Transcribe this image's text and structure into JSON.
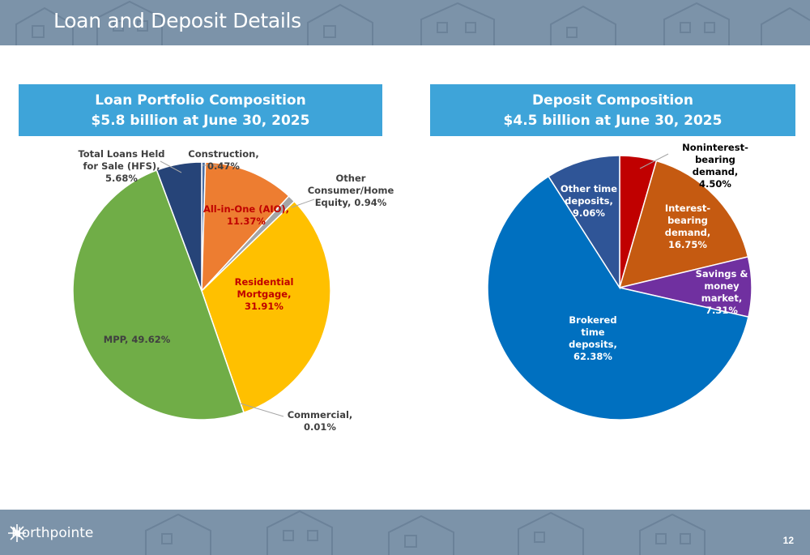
{
  "header": {
    "title": "Loan and Deposit Details"
  },
  "footer": {
    "brand": "Northpointe",
    "page_number": "12",
    "logo_icon": "compass-snowflake-icon"
  },
  "colors": {
    "banner": "#7c93a9",
    "panel_header": "#3ea4d9"
  },
  "loan_panel": {
    "title_line1": "Loan Portfolio Composition",
    "title_line2": "$5.8 billion at June 30, 2025"
  },
  "deposit_panel": {
    "title_line1": "Deposit Composition",
    "title_line2": "$4.5 billion at June 30, 2025"
  },
  "chart_data": [
    {
      "type": "pie",
      "slices": [
        {
          "label": "Construction,\n0.47%",
          "value": 0.47,
          "color": "#4a6fa5"
        },
        {
          "label": "All-in-One (AIO),\n11.37%",
          "value": 11.37,
          "color": "#ed7d31"
        },
        {
          "label": "Other\nConsumer/Home\nEquity, 0.94%",
          "value": 0.94,
          "color": "#a5a5a5"
        },
        {
          "label": "Residential\nMortgage,\n31.91%",
          "value": 31.91,
          "color": "#ffc000"
        },
        {
          "label": "Commercial,\n0.01%",
          "value": 0.01,
          "color": "#5b9bd5"
        },
        {
          "label": "MPP, 49.62%",
          "value": 49.62,
          "color": "#70ad47"
        },
        {
          "label": "Total Loans Held\nfor Sale (HFS),\n5.68%",
          "value": 5.68,
          "color": "#264478"
        }
      ]
    },
    {
      "type": "pie",
      "slices": [
        {
          "label": "Noninterest-\nbearing\ndemand,\n4.50%",
          "value": 4.5,
          "color": "#c00000"
        },
        {
          "label": "Interest-\nbearing\ndemand,\n16.75%",
          "value": 16.75,
          "color": "#c55a11"
        },
        {
          "label": "Savings &\nmoney\nmarket,\n7.31%",
          "value": 7.31,
          "color": "#7030a0"
        },
        {
          "label": "Brokered\ntime\ndeposits,\n62.38%",
          "value": 62.38,
          "color": "#0070c0"
        },
        {
          "label": "Other time\ndeposits,\n9.06%",
          "value": 9.06,
          "color": "#2f5597"
        }
      ]
    }
  ]
}
